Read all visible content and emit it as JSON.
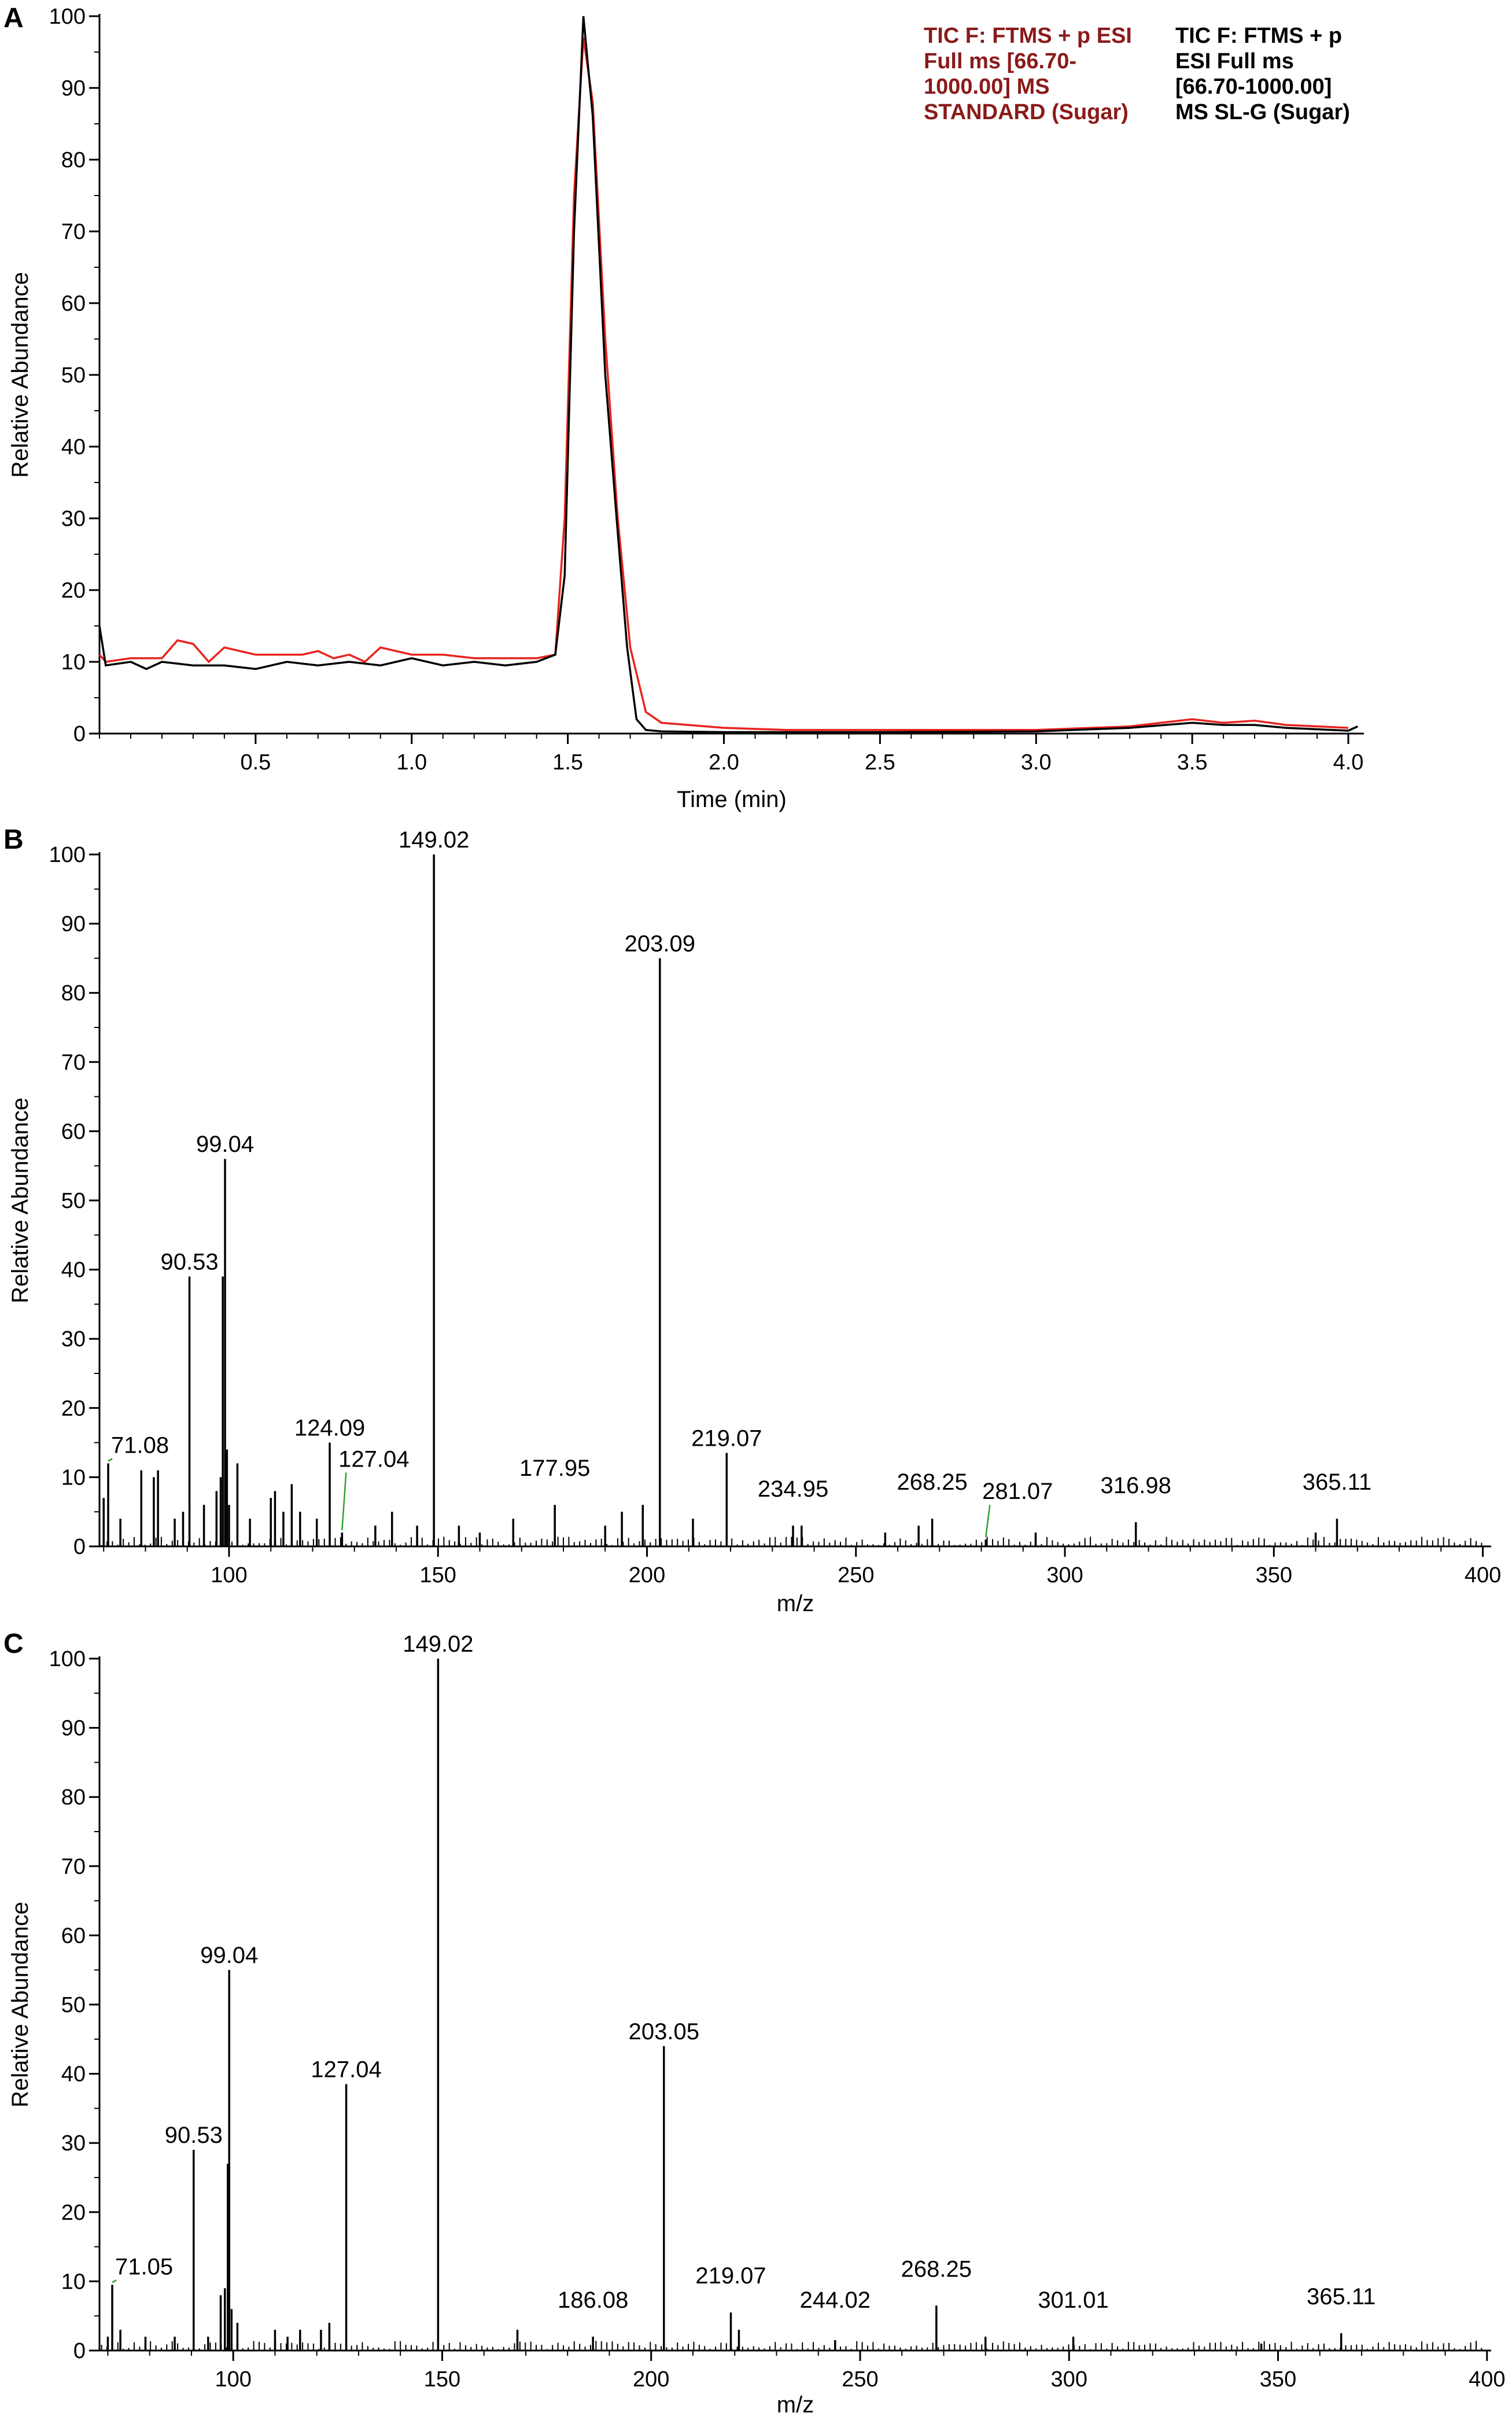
{
  "chart_data": [
    {
      "panel": "A",
      "type": "line",
      "xlabel": "Time (min)",
      "ylabel": "Relative Abundance",
      "xlim": [
        0.0,
        4.05
      ],
      "ylim": [
        0,
        100
      ],
      "xticks": [
        "0.5",
        "1.0",
        "1.5",
        "2.0",
        "2.5",
        "3.0",
        "3.5",
        "4.0"
      ],
      "yticks": [
        "0",
        "10",
        "20",
        "30",
        "40",
        "50",
        "60",
        "70",
        "80",
        "90",
        "100"
      ],
      "legend": [
        {
          "text": "TIC F: FTMS + p ESI Full ms [66.70-1000.00] MS STANDARD (Sugar)",
          "color": "#8b1a1a"
        },
        {
          "text": "TIC F: FTMS + p ESI Full ms [66.70-1000.00]  MS SL-G (Sugar)",
          "color": "#000000"
        }
      ],
      "series": [
        {
          "color": "#e8241e",
          "x": [
            0.0,
            0.02,
            0.1,
            0.2,
            0.25,
            0.3,
            0.35,
            0.4,
            0.5,
            0.6,
            0.65,
            0.7,
            0.75,
            0.8,
            0.85,
            0.9,
            1.0,
            1.1,
            1.2,
            1.3,
            1.4,
            1.46,
            1.49,
            1.52,
            1.55,
            1.58,
            1.62,
            1.66,
            1.7,
            1.75,
            1.8,
            2.0,
            2.2,
            2.5,
            3.0,
            3.3,
            3.5,
            3.6,
            3.7,
            3.8,
            4.0
          ],
          "y": [
            11,
            10,
            10.5,
            10.5,
            13,
            12.5,
            10,
            12,
            11,
            11,
            11,
            11.5,
            10.5,
            11,
            10,
            12,
            11,
            11,
            10.5,
            10.5,
            10.5,
            11,
            30,
            75,
            97,
            88,
            55,
            30,
            12,
            3,
            1.5,
            0.8,
            0.5,
            0.5,
            0.5,
            1,
            2,
            1.5,
            1.8,
            1.2,
            0.8
          ]
        },
        {
          "color": "#000000",
          "x": [
            0.0,
            0.02,
            0.1,
            0.15,
            0.2,
            0.3,
            0.4,
            0.5,
            0.6,
            0.7,
            0.8,
            0.9,
            1.0,
            1.1,
            1.2,
            1.3,
            1.4,
            1.46,
            1.49,
            1.52,
            1.55,
            1.58,
            1.62,
            1.66,
            1.69,
            1.72,
            1.75,
            1.8,
            2.0,
            2.5,
            3.0,
            3.3,
            3.5,
            3.6,
            3.7,
            3.8,
            4.0,
            4.03
          ],
          "y": [
            15,
            9.5,
            10,
            9,
            10,
            9.5,
            9.5,
            9,
            10,
            9.5,
            10,
            9.5,
            10.5,
            9.5,
            10,
            9.5,
            10,
            11,
            22,
            70,
            100,
            86,
            50,
            28,
            12,
            2,
            0.5,
            0.3,
            0.2,
            0.2,
            0.3,
            0.8,
            1.5,
            1.2,
            1.2,
            0.8,
            0.4,
            1
          ]
        }
      ]
    },
    {
      "panel": "B",
      "type": "bar",
      "xlabel": "m/z",
      "ylabel": "Relative Abundance",
      "xlim": [
        69,
        402
      ],
      "ylim": [
        0,
        100
      ],
      "xticks": [
        "100",
        "150",
        "200",
        "250",
        "300",
        "350",
        "400"
      ],
      "yticks": [
        "0",
        "10",
        "20",
        "30",
        "40",
        "50",
        "60",
        "70",
        "80",
        "90",
        "100"
      ],
      "peaks": [
        [
          70,
          7
        ],
        [
          71.08,
          12
        ],
        [
          74,
          4
        ],
        [
          79,
          11
        ],
        [
          82,
          10
        ],
        [
          83,
          11
        ],
        [
          87,
          4
        ],
        [
          89,
          5
        ],
        [
          90.53,
          39
        ],
        [
          94,
          6
        ],
        [
          97,
          8
        ],
        [
          98,
          10
        ],
        [
          98.5,
          39
        ],
        [
          99.04,
          56
        ],
        [
          99.5,
          14
        ],
        [
          100,
          6
        ],
        [
          102,
          12
        ],
        [
          105,
          4
        ],
        [
          110,
          7
        ],
        [
          111,
          8
        ],
        [
          113,
          5
        ],
        [
          115,
          9
        ],
        [
          117,
          5
        ],
        [
          121,
          4
        ],
        [
          124.09,
          15
        ],
        [
          127.04,
          2
        ],
        [
          135,
          3
        ],
        [
          139,
          5
        ],
        [
          145,
          3
        ],
        [
          149.02,
          100
        ],
        [
          155,
          3
        ],
        [
          160,
          2
        ],
        [
          168,
          4
        ],
        [
          177.95,
          6
        ],
        [
          190,
          3
        ],
        [
          194,
          5
        ],
        [
          199,
          6
        ],
        [
          203.09,
          85
        ],
        [
          211,
          4
        ],
        [
          219.07,
          13.5
        ],
        [
          234.95,
          3
        ],
        [
          237,
          3
        ],
        [
          257,
          2
        ],
        [
          265,
          3
        ],
        [
          268.25,
          4
        ],
        [
          281.07,
          1
        ],
        [
          293,
          2
        ],
        [
          316.98,
          3.5
        ],
        [
          360,
          2
        ],
        [
          365.11,
          4
        ]
      ],
      "labels": [
        {
          "text": "149.02",
          "x": 149.02,
          "y": 100
        },
        {
          "text": "203.09",
          "x": 203.09,
          "y": 85
        },
        {
          "text": "99.04",
          "x": 99.04,
          "y": 56
        },
        {
          "text": "90.53",
          "x": 90.53,
          "y": 39
        },
        {
          "text": "124.09",
          "x": 124.09,
          "y": 15
        },
        {
          "text": "219.07",
          "x": 219.07,
          "y": 13.5
        },
        {
          "text": "71.08",
          "x": 71.08,
          "y": 12
        },
        {
          "text": "127.04",
          "x": 127.04,
          "y": 2
        },
        {
          "text": "177.95",
          "x": 177.95,
          "y": 6
        },
        {
          "text": "234.95",
          "x": 234.95,
          "y": 3
        },
        {
          "text": "268.25",
          "x": 268.25,
          "y": 4
        },
        {
          "text": "281.07",
          "x": 281.07,
          "y": 1
        },
        {
          "text": "316.98",
          "x": 316.98,
          "y": 3.5
        },
        {
          "text": "365.11",
          "x": 365.11,
          "y": 4
        }
      ]
    },
    {
      "panel": "C",
      "type": "bar",
      "xlabel": "m/z",
      "ylabel": "Relative Abundance",
      "xlim": [
        68,
        401
      ],
      "ylim": [
        0,
        100
      ],
      "xticks": [
        "100",
        "150",
        "200",
        "250",
        "300",
        "350",
        "400"
      ],
      "yticks": [
        "0",
        "10",
        "20",
        "30",
        "40",
        "50",
        "60",
        "70",
        "80",
        "90",
        "100"
      ],
      "peaks": [
        [
          70,
          2
        ],
        [
          71.05,
          9.5
        ],
        [
          73,
          3
        ],
        [
          79,
          2
        ],
        [
          86,
          2
        ],
        [
          90.53,
          29
        ],
        [
          94,
          2
        ],
        [
          97,
          8
        ],
        [
          98,
          9
        ],
        [
          98.7,
          27
        ],
        [
          99.04,
          55
        ],
        [
          99.6,
          6
        ],
        [
          101,
          4
        ],
        [
          110,
          3
        ],
        [
          113,
          2
        ],
        [
          116,
          3
        ],
        [
          121,
          3
        ],
        [
          123,
          4
        ],
        [
          127.04,
          38.5
        ],
        [
          149.02,
          100
        ],
        [
          168,
          3
        ],
        [
          186.08,
          2
        ],
        [
          203.05,
          44
        ],
        [
          219.07,
          5.5
        ],
        [
          221,
          3
        ],
        [
          244.02,
          1.5
        ],
        [
          268.25,
          6.5
        ],
        [
          280,
          2
        ],
        [
          301.01,
          2
        ],
        [
          346,
          1
        ],
        [
          365.11,
          2.5
        ]
      ],
      "labels": [
        {
          "text": "149.02",
          "x": 149.02,
          "y": 100
        },
        {
          "text": "99.04",
          "x": 99.04,
          "y": 55
        },
        {
          "text": "203.05",
          "x": 203.05,
          "y": 44
        },
        {
          "text": "127.04",
          "x": 127.04,
          "y": 38.5
        },
        {
          "text": "90.53",
          "x": 90.53,
          "y": 29
        },
        {
          "text": "71.05",
          "x": 71.05,
          "y": 9.5
        },
        {
          "text": "186.08",
          "x": 186.08,
          "y": 2
        },
        {
          "text": "219.07",
          "x": 219.07,
          "y": 5.5
        },
        {
          "text": "244.02",
          "x": 244.02,
          "y": 1.5
        },
        {
          "text": "268.25",
          "x": 268.25,
          "y": 6.5
        },
        {
          "text": "301.01",
          "x": 301.01,
          "y": 2
        },
        {
          "text": "365.11",
          "x": 365.11,
          "y": 2.5
        }
      ]
    }
  ],
  "panels": {
    "a": "A",
    "b": "B",
    "c": "C"
  }
}
